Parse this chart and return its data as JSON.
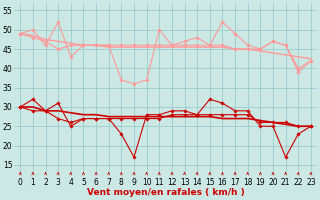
{
  "title": "Vent moyen/en rafales ( km/h )",
  "background_color": "#cce8e4",
  "grid_color": "#99cccc",
  "xlim": [
    -0.5,
    23.5
  ],
  "ylim": [
    12,
    57
  ],
  "yticks": [
    15,
    20,
    25,
    30,
    35,
    40,
    45,
    50,
    55
  ],
  "xticks": [
    0,
    1,
    2,
    3,
    4,
    5,
    6,
    7,
    8,
    9,
    10,
    11,
    12,
    13,
    14,
    15,
    16,
    17,
    18,
    19,
    20,
    21,
    22,
    23
  ],
  "series": [
    {
      "name": "rafales_max",
      "color": "#ff9999",
      "lw": 0.8,
      "marker": "D",
      "ms": 1.8,
      "data": [
        49,
        50,
        46,
        52,
        43,
        46,
        46,
        46,
        37,
        36,
        37,
        50,
        46,
        47,
        48,
        46,
        52,
        49,
        46,
        45,
        47,
        46,
        40,
        42
      ]
    },
    {
      "name": "rafales_mean",
      "color": "#ff9999",
      "lw": 1.0,
      "marker": null,
      "ms": 0,
      "data": [
        49,
        48.5,
        47.5,
        47,
        46.5,
        46,
        46,
        45.5,
        45.5,
        45.5,
        45.5,
        45.5,
        45.5,
        45.5,
        45.5,
        45.5,
        45.5,
        45,
        45,
        44.5,
        44,
        43.5,
        43,
        42.5
      ]
    },
    {
      "name": "rafales_trend",
      "color": "#ff9999",
      "lw": 0.8,
      "marker": "D",
      "ms": 1.8,
      "data": [
        49,
        48,
        47,
        45,
        46,
        46,
        46,
        46,
        46,
        46,
        46,
        46,
        46,
        46,
        46,
        46,
        46,
        45,
        45,
        45,
        47,
        46,
        39,
        42
      ]
    },
    {
      "name": "vent_max",
      "color": "#cc0000",
      "lw": 0.8,
      "marker": "D",
      "ms": 1.8,
      "data": [
        30,
        32,
        29,
        31,
        25,
        27,
        27,
        27,
        23,
        17,
        28,
        28,
        29,
        29,
        28,
        32,
        31,
        29,
        29,
        25,
        25,
        17,
        23,
        25
      ]
    },
    {
      "name": "vent_mean",
      "color": "#cc0000",
      "lw": 1.2,
      "marker": null,
      "ms": 0,
      "data": [
        30,
        30,
        29,
        29,
        28.5,
        28,
        28,
        27.5,
        27.5,
        27.5,
        27.5,
        27.5,
        27.5,
        27.5,
        27.5,
        27.5,
        27,
        27,
        27,
        26.5,
        26,
        25.5,
        25,
        25
      ]
    },
    {
      "name": "vent_trend",
      "color": "#cc0000",
      "lw": 0.8,
      "marker": "D",
      "ms": 1.8,
      "data": [
        30,
        29,
        29,
        27,
        26,
        27,
        27,
        27,
        27,
        27,
        27,
        27,
        28,
        28,
        28,
        28,
        28,
        28,
        28,
        26,
        26,
        26,
        25,
        25
      ]
    }
  ],
  "arrow_color": "#cc0000",
  "xlabel_color": "#cc0000",
  "xlabel_fontsize": 6.5,
  "tick_fontsize": 5.5
}
